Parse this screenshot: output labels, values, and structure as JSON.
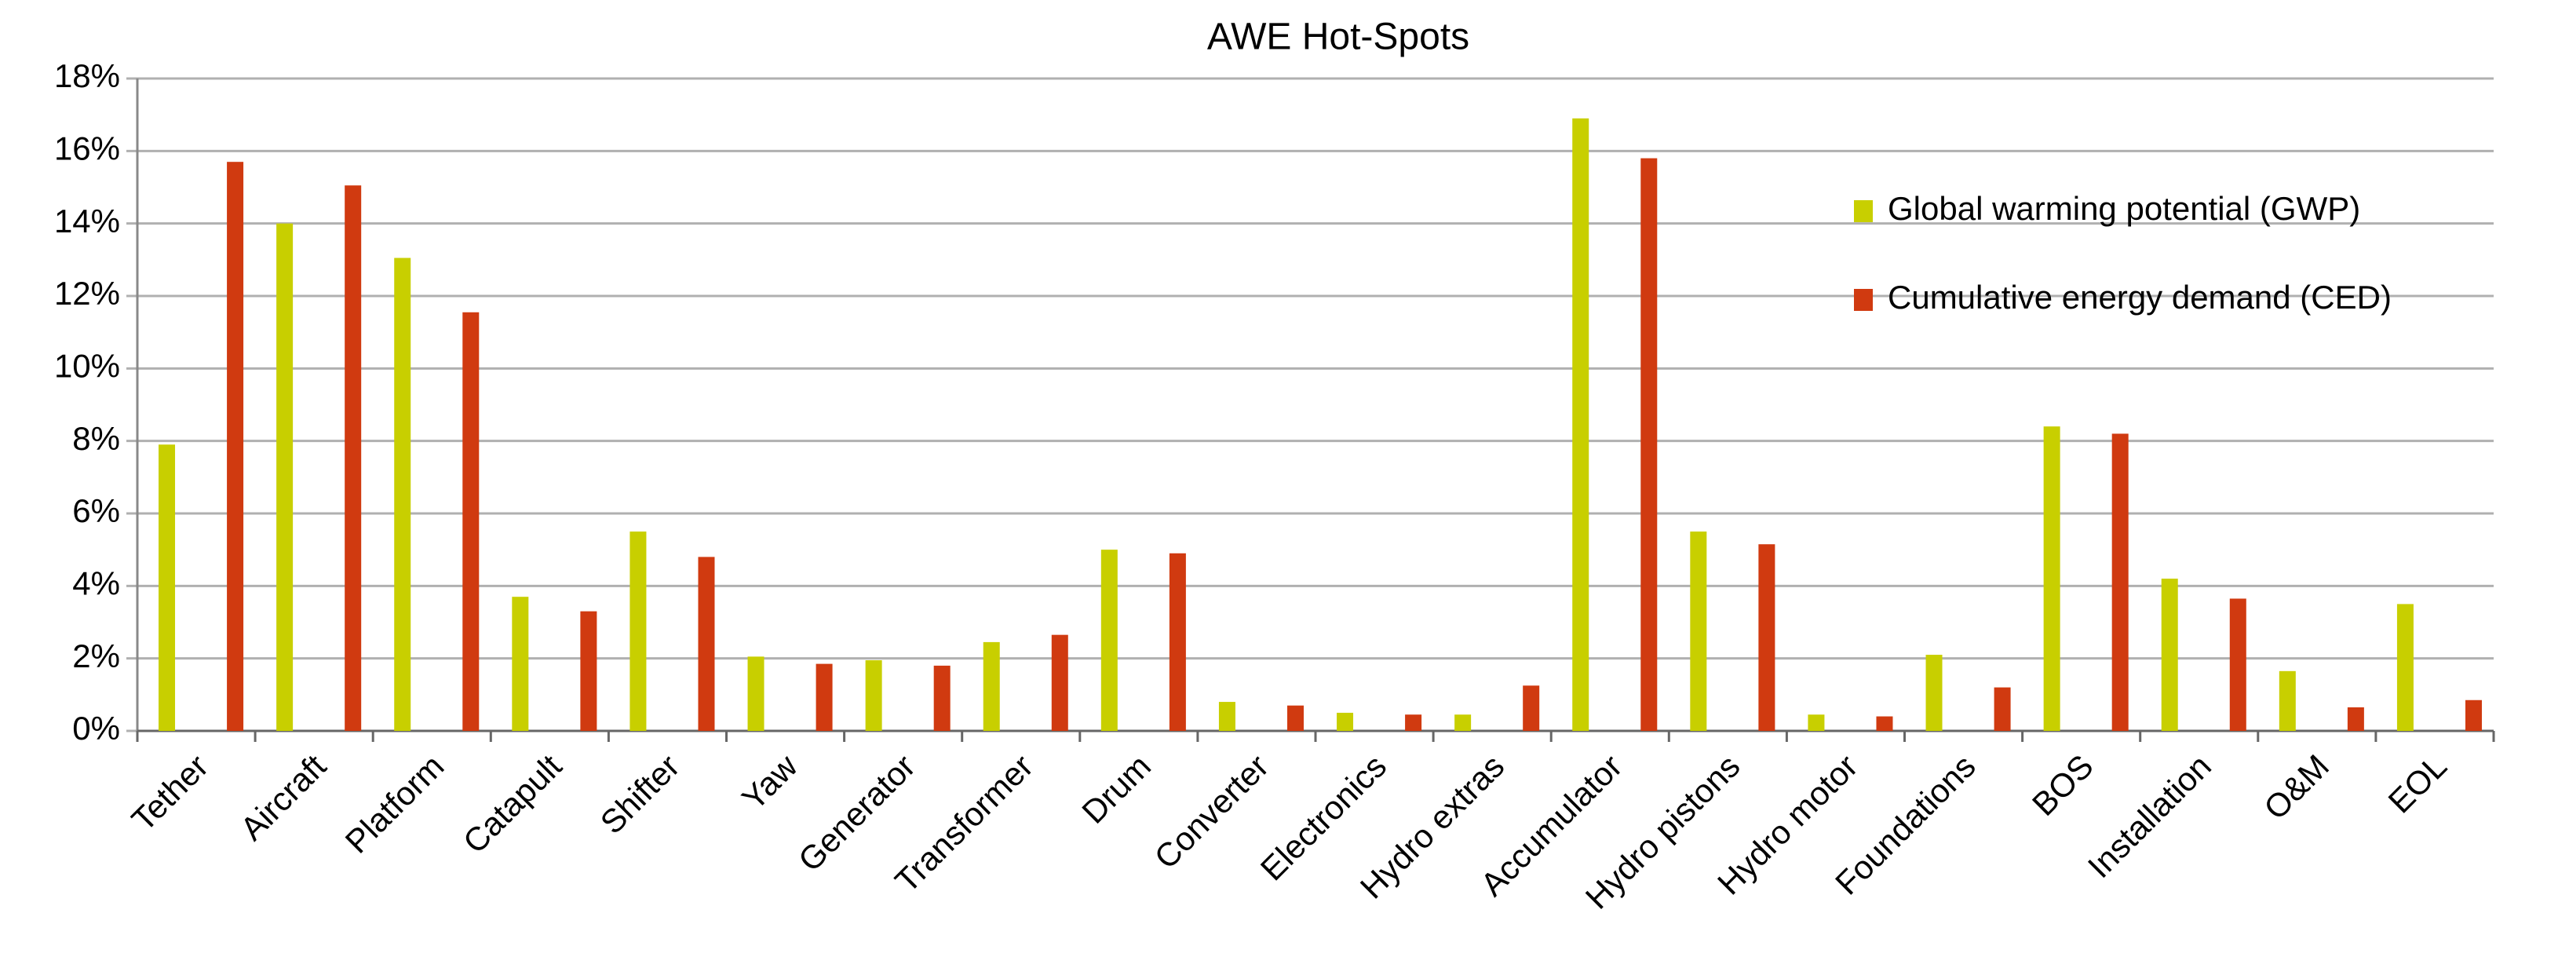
{
  "chart_data": {
    "type": "bar",
    "title": "AWE Hot-Spots",
    "categories": [
      "Tether",
      "Aircraft",
      "Platform",
      "Catapult",
      "Shifter",
      "Yaw",
      "Generator",
      "Transformer",
      "Drum",
      "Converter",
      "Electronics",
      "Hydro extras",
      "Accumulator",
      "Hydro pistons",
      "Hydro motor",
      "Foundations",
      "BOS",
      "Installation",
      "O&M",
      "EOL"
    ],
    "series": [
      {
        "name": "Global warming potential (GWP)",
        "color": "#c8cf00",
        "values": [
          7.9,
          14.0,
          13.05,
          3.7,
          5.5,
          2.05,
          1.95,
          2.45,
          5.0,
          0.8,
          0.5,
          0.45,
          16.9,
          5.5,
          0.45,
          2.1,
          8.4,
          4.2,
          1.65,
          3.5
        ]
      },
      {
        "name": "Cumulative energy demand (CED)",
        "color": "#d03a10",
        "values": [
          15.7,
          15.05,
          11.55,
          3.3,
          4.8,
          1.85,
          1.8,
          2.65,
          4.9,
          0.7,
          0.45,
          1.25,
          15.8,
          5.15,
          0.4,
          1.2,
          8.2,
          3.65,
          0.65,
          0.85
        ]
      }
    ],
    "ylim": [
      0,
      18
    ],
    "yticks": [
      {
        "value": 0,
        "label": "0%"
      },
      {
        "value": 2,
        "label": "2%"
      },
      {
        "value": 4,
        "label": "4%"
      },
      {
        "value": 6,
        "label": "6%"
      },
      {
        "value": 8,
        "label": "8%"
      },
      {
        "value": 10,
        "label": "10%"
      },
      {
        "value": 12,
        "label": "12%"
      },
      {
        "value": 14,
        "label": "14%"
      },
      {
        "value": 16,
        "label": "16%"
      },
      {
        "value": 18,
        "label": "18%"
      }
    ],
    "grid": true,
    "legend": "top-right"
  }
}
